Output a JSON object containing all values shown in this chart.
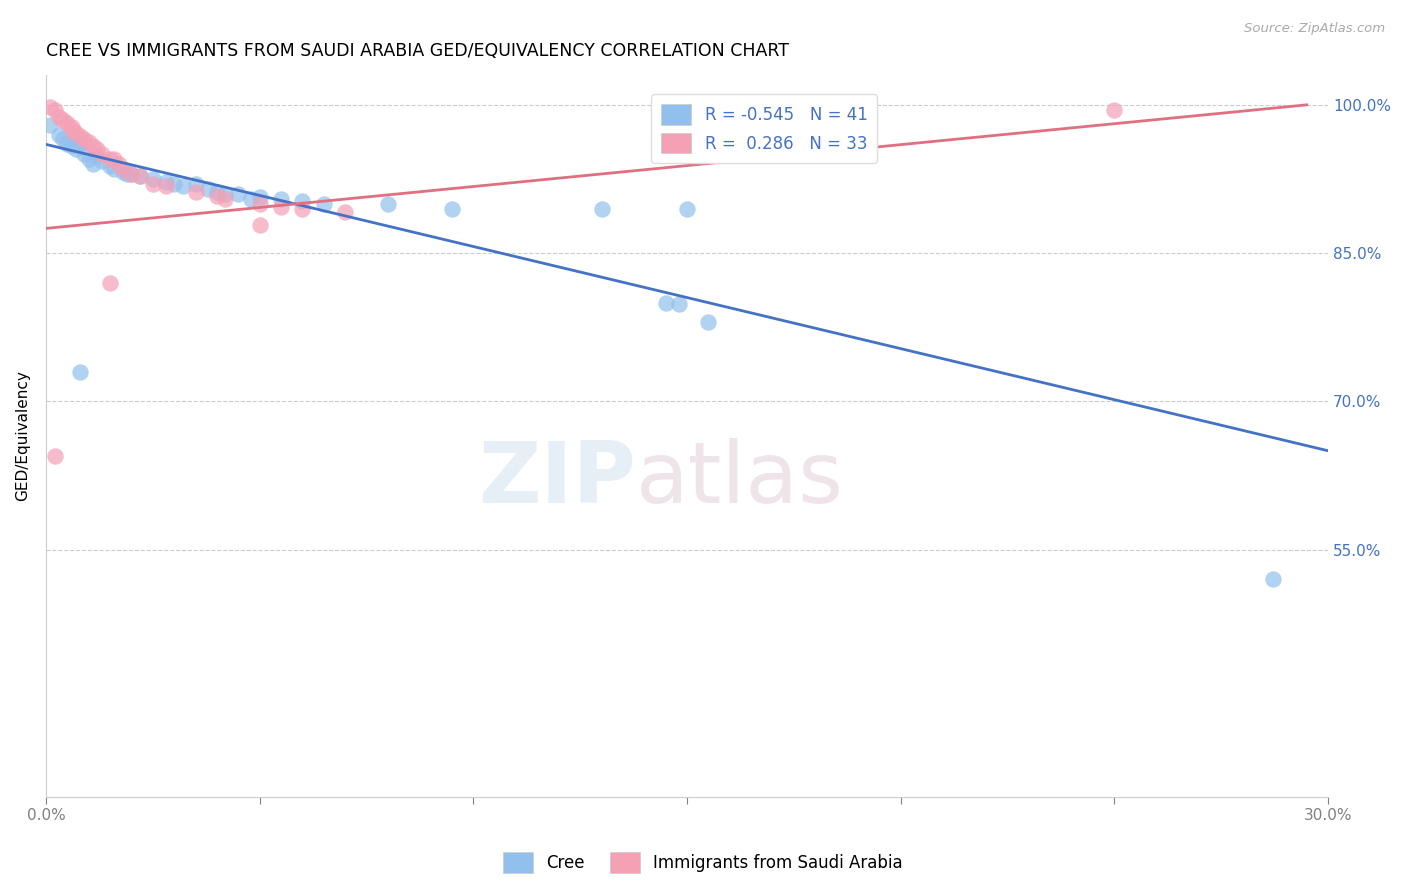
{
  "title": "CREE VS IMMIGRANTS FROM SAUDI ARABIA GED/EQUIVALENCY CORRELATION CHART",
  "source": "Source: ZipAtlas.com",
  "ylabel": "GED/Equivalency",
  "xlim": [
    0.0,
    0.3
  ],
  "ylim": [
    0.3,
    1.03
  ],
  "xticks": [
    0.0,
    0.05,
    0.1,
    0.15,
    0.2,
    0.25,
    0.3
  ],
  "xticklabels": [
    "0.0%",
    "",
    "",
    "",
    "",
    "",
    "30.0%"
  ],
  "yticks": [
    0.55,
    0.7,
    0.85,
    1.0
  ],
  "yticklabels": [
    "55.0%",
    "70.0%",
    "85.0%",
    "100.0%"
  ],
  "legend_blue_label": "R = -0.545   N = 41",
  "legend_pink_label": "R =  0.286   N = 33",
  "blue_color": "#92C0ED",
  "pink_color": "#F4A0B5",
  "trendline_blue": "#4472C4",
  "trendline_pink": "#E07080",
  "watermark_zip": "ZIP",
  "watermark_atlas": "atlas",
  "blue_scatter": [
    [
      0.001,
      0.98
    ],
    [
      0.003,
      0.97
    ],
    [
      0.004,
      0.965
    ],
    [
      0.005,
      0.96
    ],
    [
      0.006,
      0.958
    ],
    [
      0.007,
      0.955
    ],
    [
      0.008,
      0.96
    ],
    [
      0.009,
      0.95
    ],
    [
      0.01,
      0.945
    ],
    [
      0.011,
      0.94
    ],
    [
      0.012,
      0.948
    ],
    [
      0.013,
      0.943
    ],
    [
      0.015,
      0.938
    ],
    [
      0.016,
      0.935
    ],
    [
      0.018,
      0.932
    ],
    [
      0.019,
      0.93
    ],
    [
      0.02,
      0.93
    ],
    [
      0.022,
      0.928
    ],
    [
      0.025,
      0.925
    ],
    [
      0.028,
      0.922
    ],
    [
      0.03,
      0.92
    ],
    [
      0.032,
      0.918
    ],
    [
      0.035,
      0.92
    ],
    [
      0.038,
      0.915
    ],
    [
      0.04,
      0.912
    ],
    [
      0.042,
      0.91
    ],
    [
      0.045,
      0.91
    ],
    [
      0.048,
      0.905
    ],
    [
      0.05,
      0.907
    ],
    [
      0.055,
      0.905
    ],
    [
      0.06,
      0.903
    ],
    [
      0.065,
      0.9
    ],
    [
      0.08,
      0.9
    ],
    [
      0.095,
      0.895
    ],
    [
      0.13,
      0.895
    ],
    [
      0.15,
      0.895
    ],
    [
      0.008,
      0.73
    ],
    [
      0.145,
      0.8
    ],
    [
      0.148,
      0.798
    ],
    [
      0.155,
      0.78
    ],
    [
      0.287,
      0.52
    ]
  ],
  "pink_scatter": [
    [
      0.001,
      0.998
    ],
    [
      0.002,
      0.995
    ],
    [
      0.003,
      0.988
    ],
    [
      0.004,
      0.985
    ],
    [
      0.005,
      0.982
    ],
    [
      0.006,
      0.978
    ],
    [
      0.006,
      0.975
    ],
    [
      0.007,
      0.972
    ],
    [
      0.008,
      0.968
    ],
    [
      0.009,
      0.965
    ],
    [
      0.01,
      0.962
    ],
    [
      0.011,
      0.958
    ],
    [
      0.012,
      0.955
    ],
    [
      0.013,
      0.95
    ],
    [
      0.015,
      0.945
    ],
    [
      0.016,
      0.945
    ],
    [
      0.017,
      0.94
    ],
    [
      0.018,
      0.935
    ],
    [
      0.02,
      0.93
    ],
    [
      0.022,
      0.928
    ],
    [
      0.025,
      0.92
    ],
    [
      0.028,
      0.918
    ],
    [
      0.035,
      0.912
    ],
    [
      0.04,
      0.908
    ],
    [
      0.042,
      0.905
    ],
    [
      0.05,
      0.9
    ],
    [
      0.055,
      0.897
    ],
    [
      0.06,
      0.895
    ],
    [
      0.07,
      0.892
    ],
    [
      0.002,
      0.645
    ],
    [
      0.015,
      0.82
    ],
    [
      0.05,
      0.878
    ],
    [
      0.25,
      0.995
    ]
  ],
  "blue_trend_x": [
    0.0,
    0.3
  ],
  "blue_trend_y": [
    0.96,
    0.65
  ],
  "pink_trend_x": [
    0.0,
    0.295
  ],
  "pink_trend_y": [
    0.875,
    1.0
  ]
}
